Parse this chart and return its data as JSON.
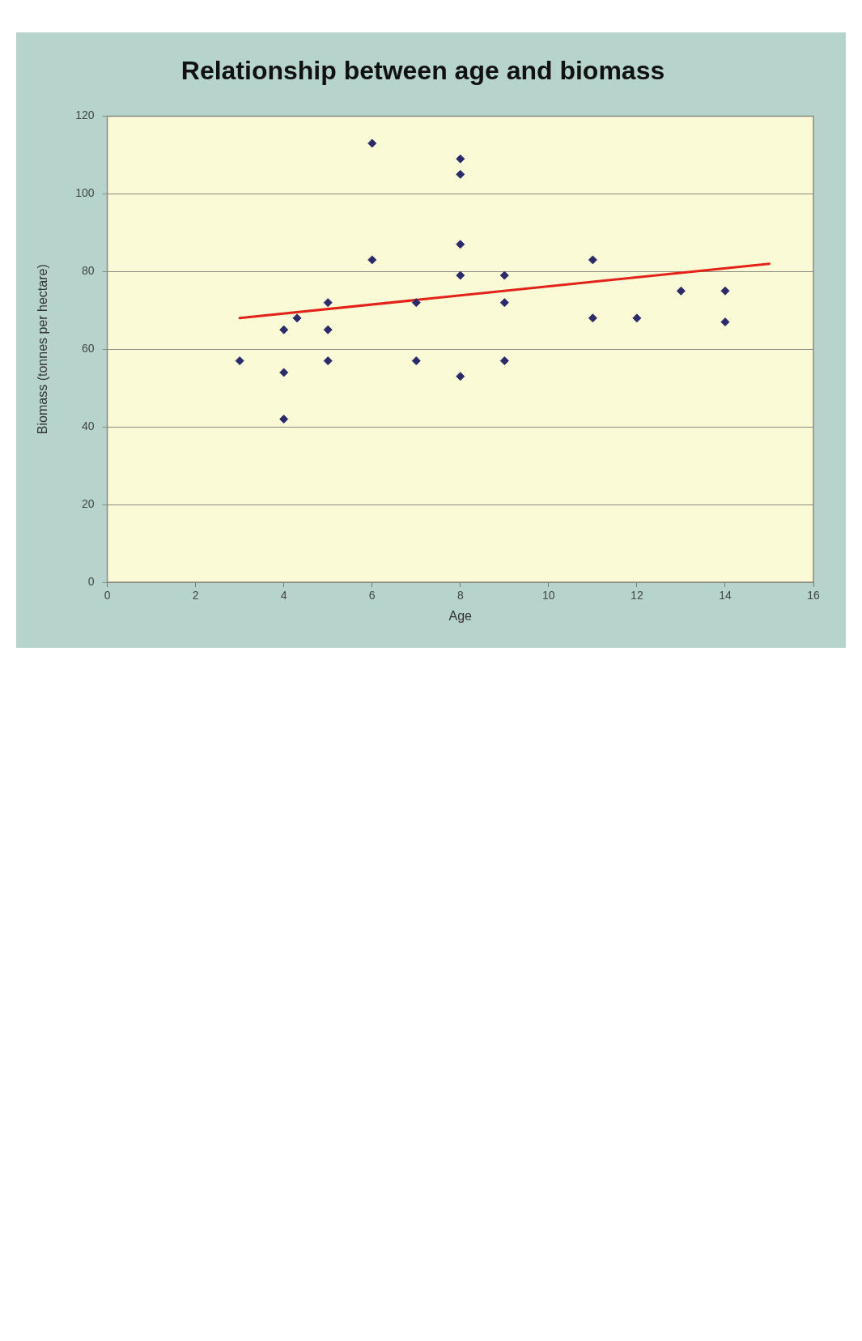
{
  "chart_data": {
    "type": "scatter",
    "title": "Relationship between age and biomass",
    "xlabel": "Age",
    "ylabel": "Biomass (tonnes per hectare)",
    "xlim": [
      0,
      16
    ],
    "xticks": [
      0,
      2,
      4,
      6,
      8,
      10,
      12,
      14,
      16
    ],
    "ylim": [
      0,
      120
    ],
    "yticks": [
      0,
      20,
      40,
      60,
      80,
      100,
      120
    ],
    "grid": "y",
    "legend": false,
    "series": [
      {
        "type": "scatter",
        "marker": "diamond",
        "color": "#2b2b6b",
        "x": [
          3,
          4,
          4,
          4,
          4.3,
          5,
          5,
          5,
          6,
          6,
          7,
          7,
          8,
          8,
          8,
          8,
          8,
          9,
          9,
          9,
          11,
          11,
          12,
          13,
          14,
          14
        ],
        "values": [
          57,
          42,
          54,
          65,
          68,
          57,
          65,
          72,
          83,
          113,
          57,
          72,
          53,
          79,
          87,
          105,
          109,
          57,
          72,
          79,
          68,
          83,
          68,
          75,
          67,
          75
        ]
      },
      {
        "type": "line",
        "marker": "none",
        "color": "#e32219",
        "x": [
          3,
          15
        ],
        "values": [
          68,
          82
        ]
      }
    ]
  }
}
